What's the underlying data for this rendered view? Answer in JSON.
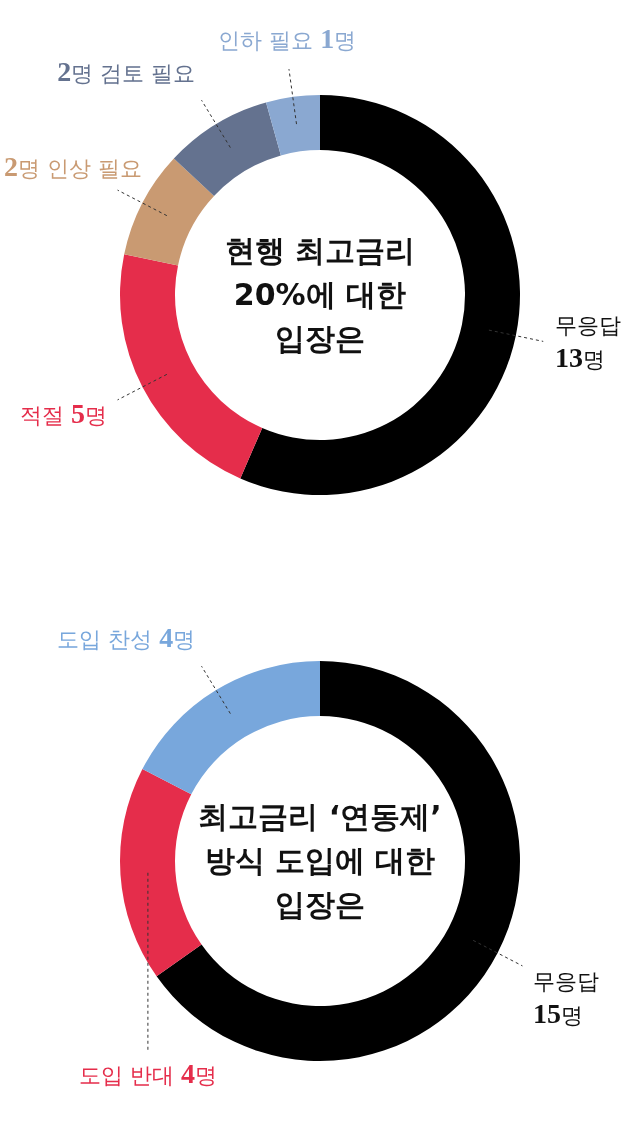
{
  "chart_data": [
    {
      "type": "donut",
      "title": "현행 최고금리\n20%에 대한\n입장은",
      "categories": [
        "무응답\n13명",
        "적절 5명",
        "2명 인상 필요",
        "2명 검토 필요",
        "인하 필요 1명"
      ],
      "values": [
        13,
        5,
        2,
        2,
        1
      ],
      "colors": [
        "#000000",
        "#e52d4b",
        "#c99a72",
        "#64728f",
        "#8aa8d1"
      ]
    },
    {
      "type": "donut",
      "title": "최고금리 ‘연동제’\n방식 도입에 대한\n입장은",
      "categories": [
        "무응답\n15명",
        "도입 반대 4명",
        "도입 찬성 4명"
      ],
      "values": [
        15,
        4,
        4
      ],
      "colors": [
        "#000000",
        "#e52d4b",
        "#78a7dc"
      ]
    }
  ]
}
